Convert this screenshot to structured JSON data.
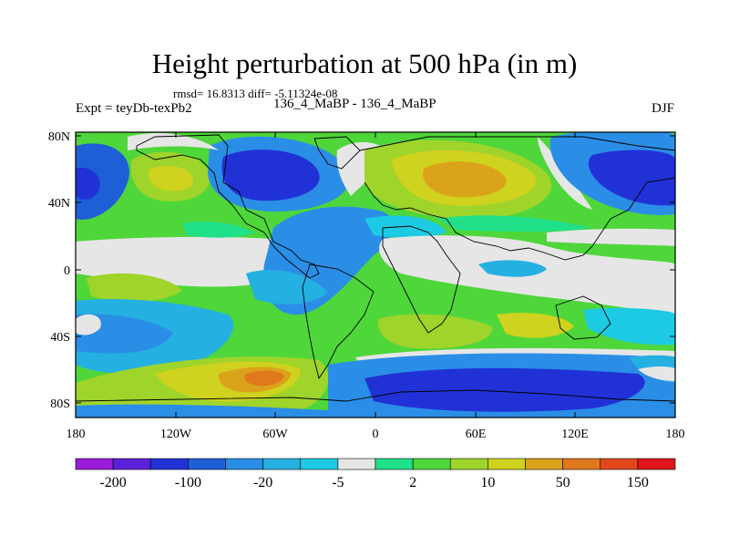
{
  "title": "Height perturbation at 500 hPa (in m)",
  "stats": "rmsd= 16.8313 diff= -5.11324e-08",
  "left_string": "Expt = teyDb-texPb2",
  "center_string": "136_4_MaBP - 136_4_MaBP",
  "right_string": "DJF",
  "axes": {
    "lat_ticks": [
      "80N",
      "40N",
      "0",
      "40S",
      "80S"
    ],
    "lon_ticks": [
      "180",
      "120W",
      "60W",
      "0",
      "60E",
      "120E",
      "180"
    ]
  },
  "colorbar": {
    "colors": [
      "#9a1bd9",
      "#5a20d8",
      "#2032d6",
      "#1e5fd8",
      "#2b8ee6",
      "#25b0e2",
      "#1ccbe3",
      "#e6e6e6",
      "#20e08a",
      "#4fd63a",
      "#9fd42a",
      "#cfd21e",
      "#dba31a",
      "#e0781c",
      "#e2471c",
      "#e0141a"
    ],
    "labels": [
      "-200",
      "-100",
      "-20",
      "-5",
      "2",
      "10",
      "50",
      "150"
    ]
  },
  "map_palette": {
    "background": "#4fd63a",
    "blue_deep": "#2032d6",
    "blue": "#1e5fd8",
    "blue_mid": "#2b8ee6",
    "cyan": "#25b0e2",
    "light_cyan": "#1ccbe3",
    "gray": "#e6e6e6",
    "teal": "#20e08a",
    "yellowgreen": "#9fd42a",
    "yellow": "#cfd21e",
    "orange": "#dba31a",
    "dark_orange": "#e0781c"
  }
}
